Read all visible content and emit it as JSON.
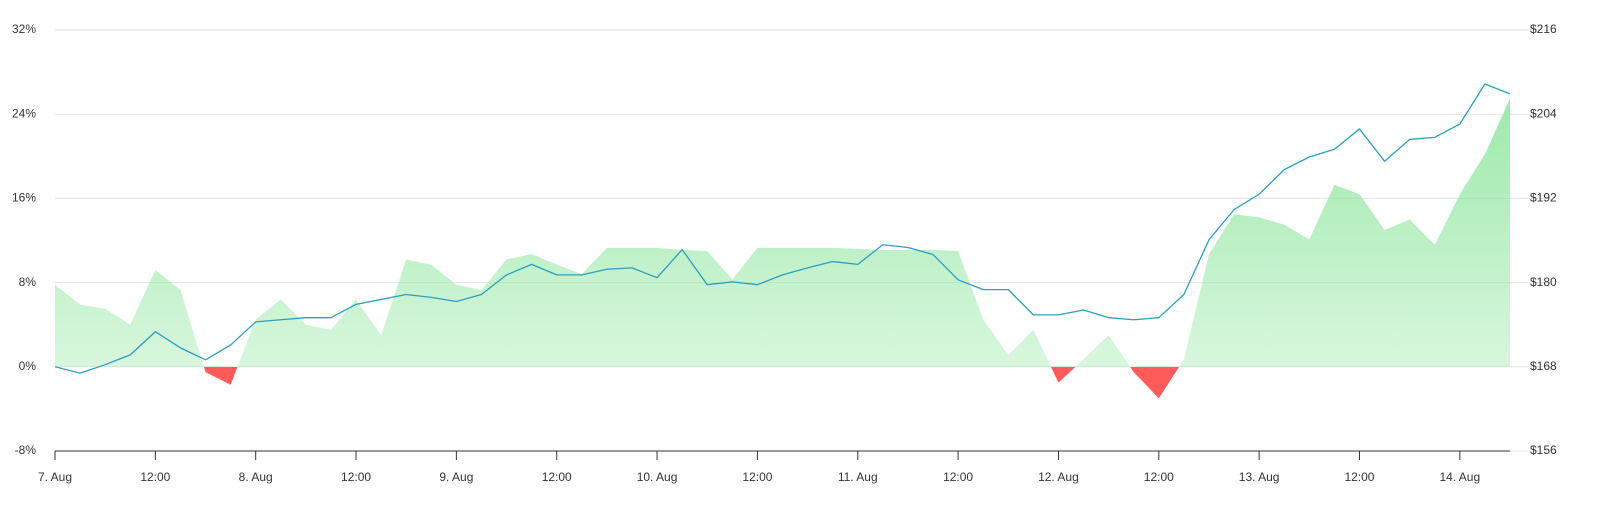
{
  "chart_data": {
    "type": "area-line",
    "x": [
      0,
      3,
      6,
      9,
      12,
      15,
      18,
      21,
      24,
      27,
      30,
      33,
      36,
      39,
      42,
      45,
      48,
      51,
      54,
      57,
      60,
      63,
      66,
      69,
      72,
      75,
      78,
      81,
      84,
      87,
      90,
      93,
      96,
      99,
      102,
      105,
      108,
      111,
      114,
      117,
      120,
      123,
      126,
      129,
      132,
      135,
      138,
      141,
      144,
      147,
      150,
      153,
      156,
      159,
      162,
      165,
      168,
      171,
      174
    ],
    "xlim": [
      0,
      174
    ],
    "xticks": [
      {
        "value": 0,
        "label": "7. Aug"
      },
      {
        "value": 12,
        "label": "12:00"
      },
      {
        "value": 24,
        "label": "8. Aug"
      },
      {
        "value": 36,
        "label": "12:00"
      },
      {
        "value": 48,
        "label": "9. Aug"
      },
      {
        "value": 60,
        "label": "12:00"
      },
      {
        "value": 72,
        "label": "10. Aug"
      },
      {
        "value": 84,
        "label": "12:00"
      },
      {
        "value": 96,
        "label": "11. Aug"
      },
      {
        "value": 108,
        "label": "12:00"
      },
      {
        "value": 120,
        "label": "12. Aug"
      },
      {
        "value": 132,
        "label": "12:00"
      },
      {
        "value": 144,
        "label": "13. Aug"
      },
      {
        "value": 156,
        "label": "12:00"
      },
      {
        "value": 168,
        "label": "14. Aug"
      }
    ],
    "ylim": [
      -8,
      32
    ],
    "yticks": [
      {
        "value": -8,
        "label": "-8%"
      },
      {
        "value": 0,
        "label": "0%"
      },
      {
        "value": 8,
        "label": "8%"
      },
      {
        "value": 16,
        "label": "16%"
      },
      {
        "value": 24,
        "label": "24%"
      },
      {
        "value": 32,
        "label": "32%"
      }
    ],
    "y2lim": [
      156,
      216
    ],
    "y2ticks": [
      {
        "value": 156,
        "label": "$156"
      },
      {
        "value": 168,
        "label": "$168"
      },
      {
        "value": 180,
        "label": "$180"
      },
      {
        "value": 192,
        "label": "$192"
      },
      {
        "value": 204,
        "label": "$204"
      },
      {
        "value": 216,
        "label": "$216"
      }
    ],
    "grid": true,
    "series": [
      {
        "type": "area",
        "color": "#8fe69f",
        "negative_color": "#ff5b5b",
        "values": [
          7.8,
          5.9,
          5.5,
          4.0,
          9.2,
          7.3,
          -0.5,
          -1.7,
          4.5,
          6.4,
          4.0,
          3.5,
          6.4,
          3.0,
          10.2,
          9.7,
          7.8,
          7.3,
          10.2,
          10.7,
          9.7,
          8.8,
          11.3,
          11.3,
          11.3,
          11.1,
          11.0,
          8.3,
          11.3,
          11.3,
          11.3,
          11.3,
          11.2,
          11.1,
          11.1,
          11.1,
          11.0,
          4.5,
          1.1,
          3.5,
          -1.5,
          0.7,
          3.0,
          -0.5,
          -3.0,
          0.7,
          10.7,
          14.5,
          14.2,
          13.5,
          12.1,
          17.3,
          16.4,
          13.0,
          14.0,
          11.6,
          16.4,
          20.2,
          25.5
        ]
      },
      {
        "type": "line",
        "axis": "y2",
        "color": "#2a9fc0",
        "values": [
          168.0,
          167.1,
          168.3,
          169.7,
          173.0,
          170.7,
          169.0,
          171.1,
          174.4,
          174.7,
          175.0,
          175.0,
          176.9,
          177.6,
          178.3,
          177.9,
          177.3,
          178.3,
          181.1,
          182.6,
          181.1,
          181.1,
          181.9,
          182.1,
          180.7,
          184.7,
          179.7,
          180.1,
          179.7,
          181.1,
          182.1,
          183.0,
          182.6,
          185.4,
          185.0,
          184.0,
          180.4,
          179.0,
          179.0,
          175.4,
          175.4,
          176.1,
          175.0,
          174.7,
          175.0,
          178.3,
          186.1,
          190.4,
          192.6,
          196.1,
          197.9,
          199.0,
          201.9,
          197.3,
          200.4,
          200.7,
          202.6,
          208.3,
          206.9
        ]
      }
    ]
  }
}
